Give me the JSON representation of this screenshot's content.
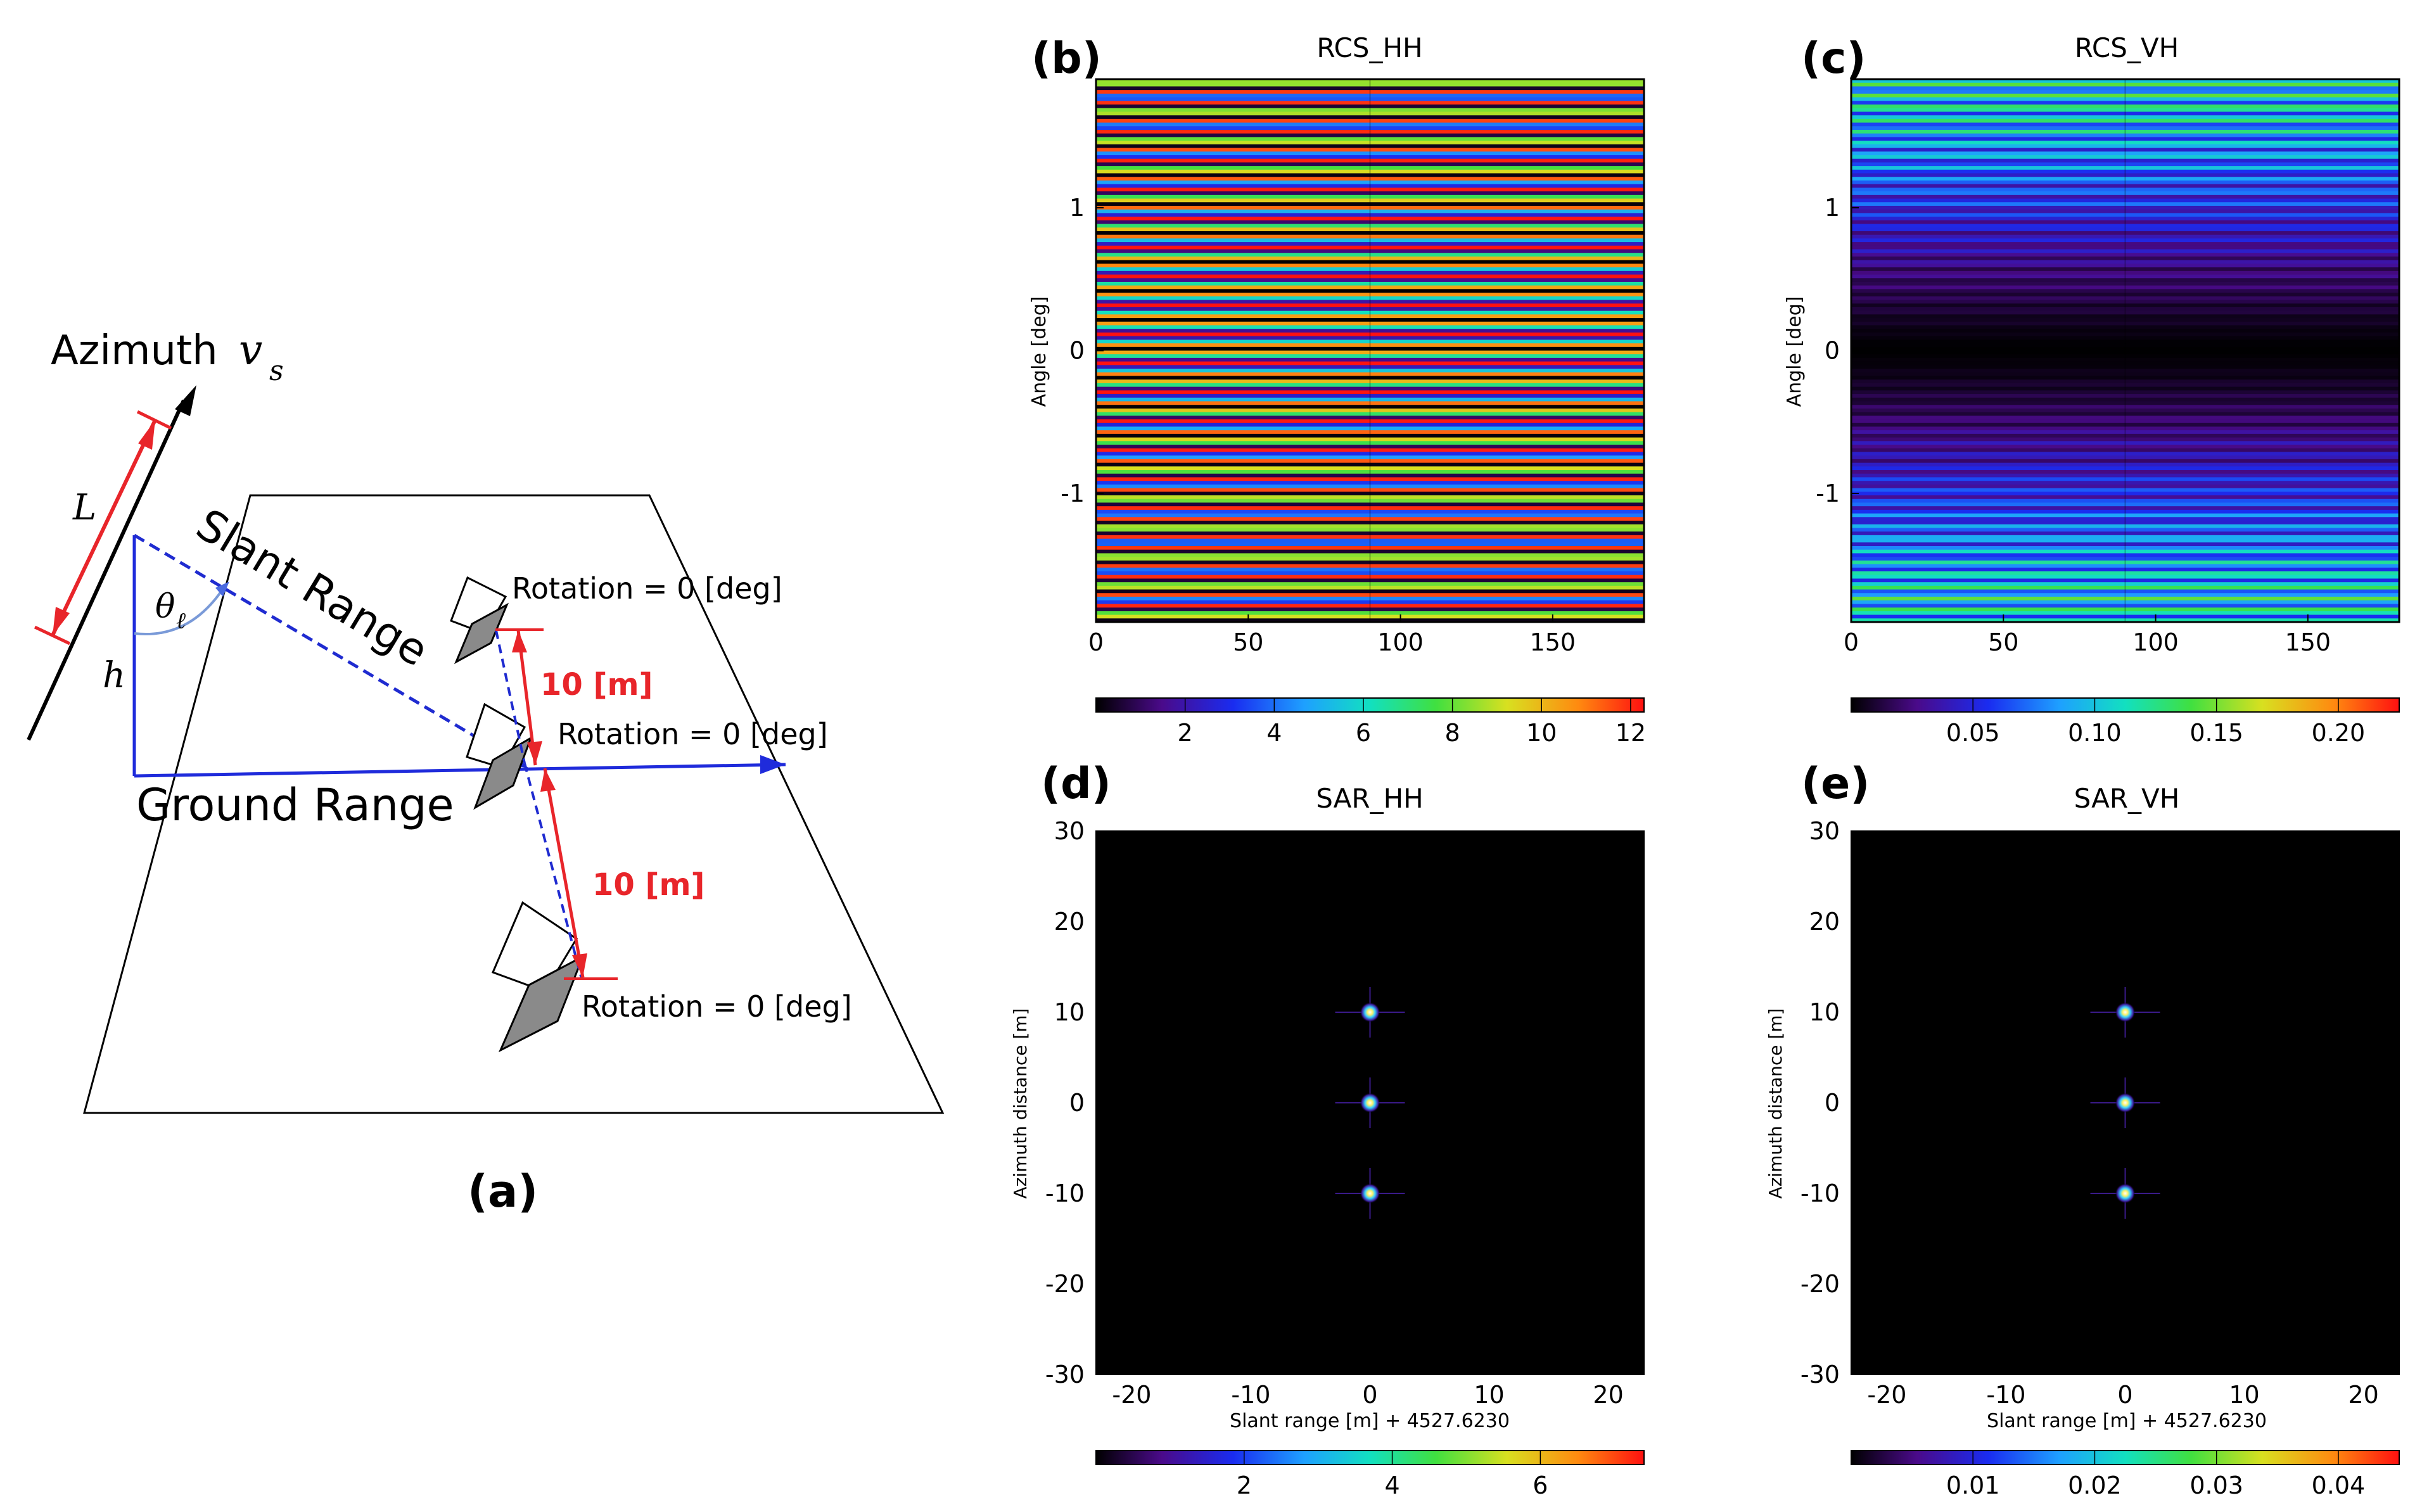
{
  "panel_a": {
    "panel_label": "(a)",
    "azimuth_label": "Azimuth",
    "azimuth_var": "v",
    "azimuth_sub": "s",
    "length_label": "L",
    "height_label": "h",
    "angle_label": "θ",
    "angle_sub": "ℓ",
    "slant_range_label": "Slant Range",
    "ground_range_label": "Ground Range",
    "targets": [
      {
        "rotation_label": "Rotation = 0 [deg]"
      },
      {
        "rotation_label": "Rotation = 0 [deg]"
      },
      {
        "rotation_label": "Rotation = 0 [deg]"
      }
    ],
    "spacing_labels": [
      "10 [m]",
      "10 [m]"
    ],
    "colors": {
      "arrow_blue": "#1f2bdb",
      "dashed_blue": "#1f2bd0",
      "red": "#e8252a",
      "target_gray": "#8a8a8a"
    }
  },
  "chart_data": [
    {
      "type": "heatmap",
      "panel_label": "(b)",
      "title": "RCS_HH",
      "xlabel": "",
      "ylabel": "Angle [deg]",
      "xlim": [
        0,
        180
      ],
      "ylim": [
        -1.9,
        1.9
      ],
      "xticks": [
        "0",
        "50",
        "100",
        "150"
      ],
      "xtick_values": [
        0,
        50,
        100,
        150
      ],
      "yticks": [
        "1",
        "0",
        "-1"
      ],
      "ytick_values": [
        1,
        0,
        -1
      ],
      "colorbar": {
        "range": [
          0,
          12.3
        ],
        "ticks": [
          "2",
          "4",
          "6",
          "8",
          "10",
          "12"
        ],
        "tick_values": [
          2,
          4,
          6,
          8,
          10,
          12
        ],
        "colormap": "jet-like"
      },
      "pattern": "dense horizontal interference fringes, uniform multicolour stripes across full angle range"
    },
    {
      "type": "heatmap",
      "panel_label": "(c)",
      "title": "RCS_VH",
      "xlabel": "",
      "ylabel": "Angle [deg]",
      "xlim": [
        0,
        180
      ],
      "ylim": [
        -1.9,
        1.9
      ],
      "xticks": [
        "0",
        "50",
        "100",
        "150"
      ],
      "xtick_values": [
        0,
        50,
        100,
        150
      ],
      "yticks": [
        "1",
        "0",
        "-1"
      ],
      "ytick_values": [
        1,
        0,
        -1
      ],
      "colorbar": {
        "range": [
          0,
          0.225
        ],
        "ticks": [
          "0.05",
          "0.10",
          "0.15",
          "0.20"
        ],
        "tick_values": [
          0.05,
          0.1,
          0.15,
          0.2
        ],
        "colormap": "jet-like"
      },
      "pattern": "horizontal fringes, near zero at 0 deg, rising toward green/cyan at |angle| > 1"
    },
    {
      "type": "heatmap",
      "panel_label": "(d)",
      "title": "SAR_HH",
      "xlabel": "Slant range [m] + 4527.6230",
      "ylabel": "Azimuth distance [m]",
      "xlim": [
        -23,
        23
      ],
      "ylim": [
        -30,
        30
      ],
      "xticks": [
        "-20",
        "-10",
        "0",
        "10",
        "20"
      ],
      "xtick_values": [
        -20,
        -10,
        0,
        10,
        20
      ],
      "yticks": [
        "30",
        "20",
        "10",
        "0",
        "-10",
        "-20",
        "-30"
      ],
      "ytick_values": [
        30,
        20,
        10,
        0,
        -10,
        -20,
        -30
      ],
      "points": [
        {
          "x": 0,
          "y": 10
        },
        {
          "x": 0,
          "y": 0
        },
        {
          "x": 0,
          "y": -10
        }
      ],
      "colorbar": {
        "range": [
          0,
          7.4
        ],
        "ticks": [
          "2",
          "4",
          "6"
        ],
        "tick_values": [
          2,
          4,
          6
        ],
        "colormap": "jet-like"
      }
    },
    {
      "type": "heatmap",
      "panel_label": "(e)",
      "title": "SAR_VH",
      "xlabel": "Slant range [m] + 4527.6230",
      "ylabel": "Azimuth distance [m]",
      "xlim": [
        -23,
        23
      ],
      "ylim": [
        -30,
        30
      ],
      "xticks": [
        "-20",
        "-10",
        "0",
        "10",
        "20"
      ],
      "xtick_values": [
        -20,
        -10,
        0,
        10,
        20
      ],
      "yticks": [
        "30",
        "20",
        "10",
        "0",
        "-10",
        "-20",
        "-30"
      ],
      "ytick_values": [
        30,
        20,
        10,
        0,
        -10,
        -20,
        -30
      ],
      "points": [
        {
          "x": 0,
          "y": 10
        },
        {
          "x": 0,
          "y": 0
        },
        {
          "x": 0,
          "y": -10
        }
      ],
      "colorbar": {
        "range": [
          0,
          0.045
        ],
        "ticks": [
          "0.01",
          "0.02",
          "0.03",
          "0.04"
        ],
        "tick_values": [
          0.01,
          0.02,
          0.03,
          0.04
        ],
        "colormap": "jet-like"
      }
    }
  ]
}
